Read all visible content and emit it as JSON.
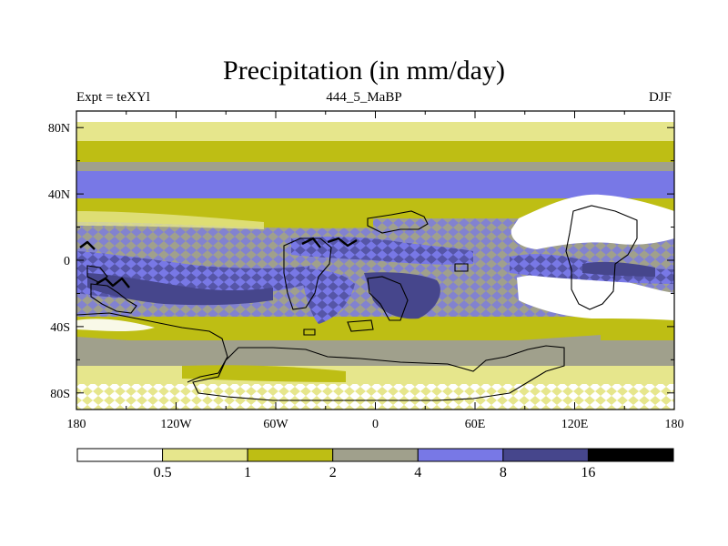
{
  "header": {
    "title": "Precipitation (in mm/day)",
    "left_label": "Expt = teXYl",
    "center_label": "444_5_MaBP",
    "right_label": "DJF"
  },
  "map": {
    "x_ticks": [
      "180",
      "120W",
      "60W",
      "0",
      "60E",
      "120E",
      "180"
    ],
    "y_ticks": [
      "80N",
      "40N",
      "0",
      "40S",
      "80S"
    ],
    "x_tick_lon": [
      -180,
      -120,
      -60,
      0,
      60,
      120,
      180
    ],
    "y_tick_lat": [
      80,
      40,
      0,
      -40,
      -80
    ],
    "lon_range": [
      -180,
      180
    ],
    "lat_range": [
      -90,
      90
    ]
  },
  "colorbar": {
    "labels": [
      "0.5",
      "1",
      "2",
      "4",
      "8",
      "16"
    ],
    "colors": [
      "#ffffff",
      "#e6e68c",
      "#bebe14",
      "#a0a08c",
      "#7878e6",
      "#46468c",
      "#000000"
    ]
  }
}
